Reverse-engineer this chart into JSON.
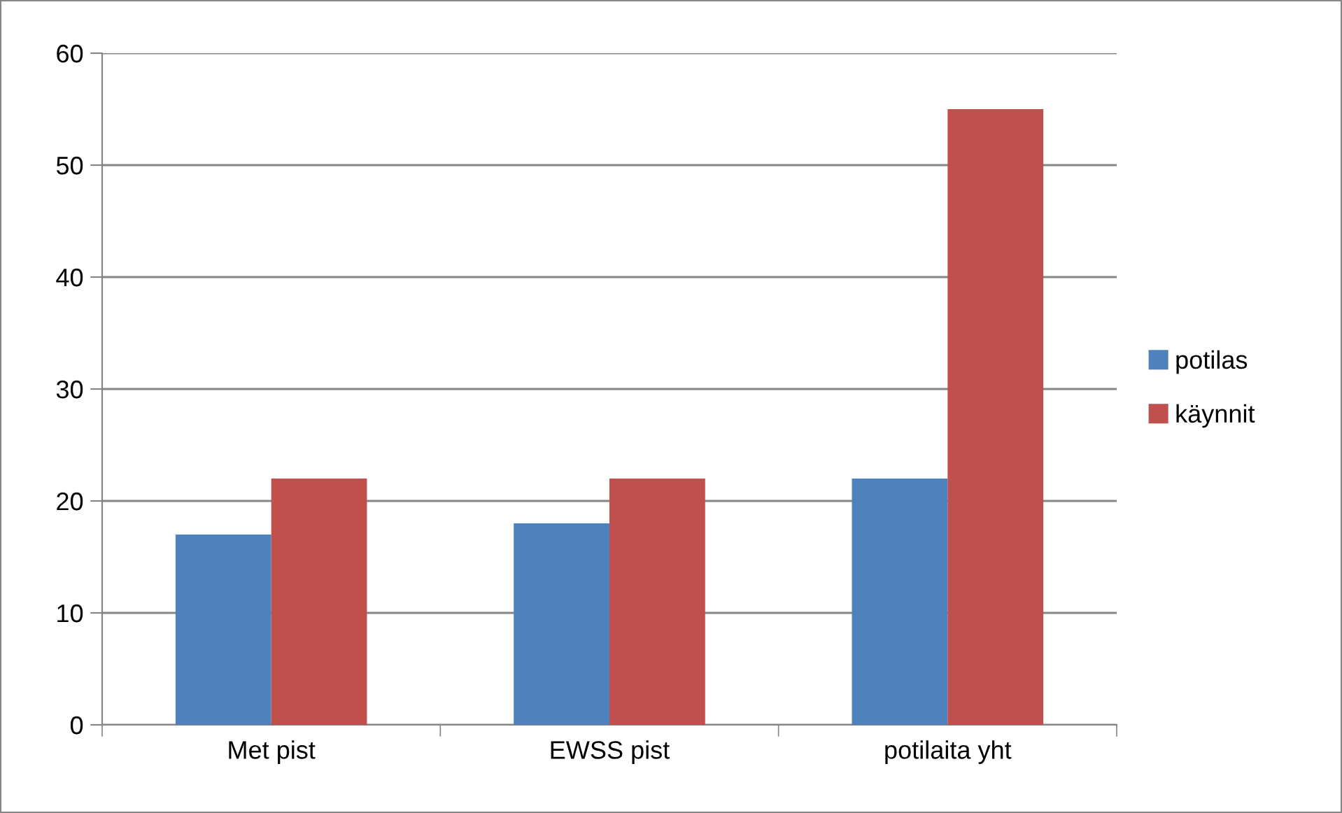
{
  "chart_data": {
    "type": "bar",
    "categories": [
      "Met pist",
      "EWSS pist",
      "potilaita yht"
    ],
    "series": [
      {
        "name": "potilas",
        "color": "#4f81bd",
        "values": [
          17,
          18,
          22
        ]
      },
      {
        "name": "käynnit",
        "color": "#c0504d",
        "values": [
          22,
          22,
          55
        ]
      }
    ],
    "ylim": [
      0,
      60
    ],
    "yticks": [
      0,
      10,
      20,
      30,
      40,
      50,
      60
    ],
    "grid": "y",
    "legend": "right"
  }
}
